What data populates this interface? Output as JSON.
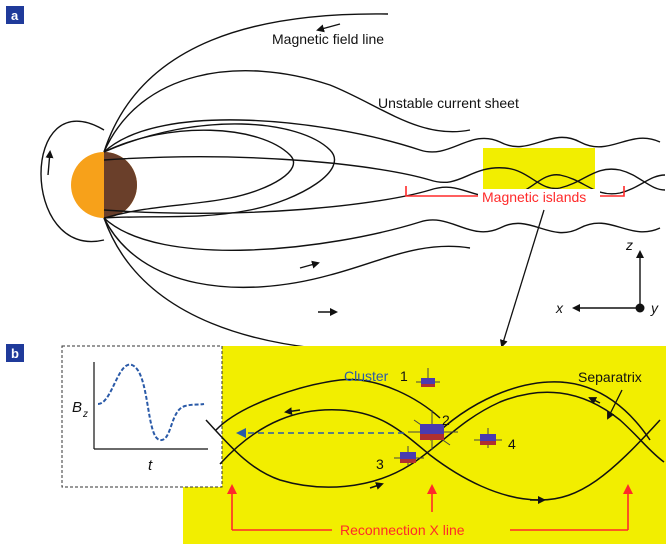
{
  "panel_a": {
    "tag": "a",
    "field_line_label": "Magnetic field line",
    "current_sheet_label": "Unstable current sheet",
    "islands_label": "Magnetic islands",
    "axis_z": "z",
    "axis_x": "x",
    "axis_y": "y"
  },
  "panel_b": {
    "tag": "b",
    "cluster_label": "Cluster",
    "sc1": "1",
    "sc2": "2",
    "sc3": "3",
    "sc4": "4",
    "separatrix_label": "Separatrix",
    "x_line_label": "Reconnection X line",
    "inset_ylabel": "B",
    "inset_ylabel_sub": "z",
    "inset_xlabel": "t"
  },
  "colors": {
    "yellow": "#f2ee00",
    "red": "#ff2a2a",
    "blue": "#2a5aa8",
    "earth_day": "#f7a11a",
    "earth_night": "#6a3f2a",
    "tag": "#1f3a9a"
  }
}
